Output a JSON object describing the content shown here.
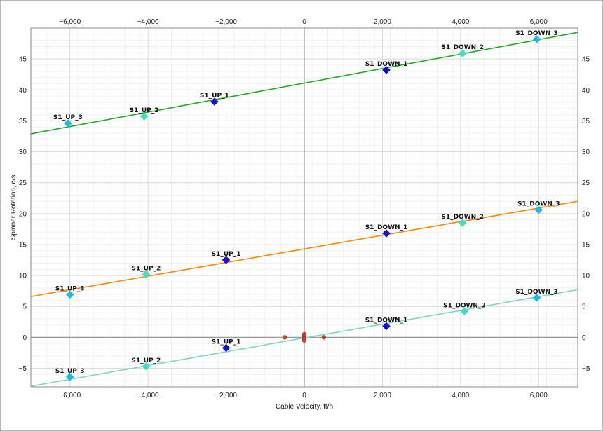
{
  "chart_data": {
    "type": "scatter",
    "title": "",
    "xlabel": "Cable Velocity, ft/h",
    "ylabel": "Spinner Rotation, c/s",
    "xlim": [
      -7000,
      7000
    ],
    "ylim": [
      -8,
      50
    ],
    "x_ticks": [
      -6000,
      -4000,
      -2000,
      0,
      2000,
      4000,
      6000
    ],
    "x_tick_labels": [
      "−6,000",
      "−4,000",
      "−2,000",
      "0",
      "2,000",
      "4,000",
      "6,000"
    ],
    "y_ticks": [
      -5,
      0,
      5,
      10,
      15,
      20,
      25,
      30,
      35,
      40,
      45
    ],
    "y_tick_labels": [
      "−5",
      "0",
      "5",
      "10",
      "15",
      "20",
      "25",
      "30",
      "35",
      "40",
      "45"
    ],
    "grid": true,
    "legend": "none",
    "colors": {
      "zero_line": "#9a9a9a",
      "up_1": "#1010d8",
      "up_2": "#40e0c8",
      "up_3": "#20b8e8",
      "down_1": "#1010d8",
      "down_2": "#40e0c8",
      "down_3": "#20b8e8",
      "zero_flow_points": "#d84030"
    },
    "fit_lines": [
      {
        "color": "#22aa22",
        "x": [
          -7000,
          7000
        ],
        "y": [
          32.9,
          49.3
        ]
      },
      {
        "color": "#ff8800",
        "x": [
          -7000,
          7000
        ],
        "y": [
          6.6,
          22.0
        ]
      },
      {
        "color": "#7fd6c0",
        "x": [
          -7000,
          7000
        ],
        "y": [
          -7.9,
          7.7
        ]
      }
    ],
    "series": [
      {
        "points": [
          {
            "x": -6050,
            "y": 34.6,
            "label": "S1_UP_3",
            "color": "up_3"
          },
          {
            "x": -4100,
            "y": 35.7,
            "label": "S1_UP_2",
            "color": "up_2"
          },
          {
            "x": -2300,
            "y": 38.1,
            "label": "S1_UP_1",
            "color": "up_1"
          },
          {
            "x": 2100,
            "y": 43.2,
            "label": "S1_DOWN_1",
            "color": "down_1"
          },
          {
            "x": 4050,
            "y": 45.9,
            "label": "S1_DOWN_2",
            "color": "down_2"
          },
          {
            "x": 5950,
            "y": 48.2,
            "label": "S1_DOWN_3",
            "color": "down_3"
          }
        ]
      },
      {
        "points": [
          {
            "x": -6000,
            "y": 6.9,
            "label": "S1_UP_3",
            "color": "up_3"
          },
          {
            "x": -4050,
            "y": 10.2,
            "label": "S1_UP_2",
            "color": "up_2"
          },
          {
            "x": -2000,
            "y": 12.5,
            "label": "S1_UP_1",
            "color": "up_1"
          },
          {
            "x": 2100,
            "y": 16.8,
            "label": "S1_DOWN_1",
            "color": "down_1"
          },
          {
            "x": 4050,
            "y": 18.5,
            "label": "S1_DOWN_2",
            "color": "down_2"
          },
          {
            "x": 6000,
            "y": 20.6,
            "label": "S1_DOWN_3",
            "color": "down_3"
          }
        ]
      },
      {
        "points": [
          {
            "x": -6000,
            "y": -6.4,
            "label": "S1_UP_3",
            "color": "up_3"
          },
          {
            "x": -4050,
            "y": -4.7,
            "label": "S1_UP_2",
            "color": "up_2"
          },
          {
            "x": -2000,
            "y": -1.7,
            "label": "S1_UP_1",
            "color": "up_1"
          },
          {
            "x": 2100,
            "y": 1.8,
            "label": "S1_DOWN_1",
            "color": "down_1"
          },
          {
            "x": 4100,
            "y": 4.2,
            "label": "S1_DOWN_2",
            "color": "down_2"
          },
          {
            "x": 5950,
            "y": 6.4,
            "label": "S1_DOWN_3",
            "color": "down_3"
          }
        ]
      }
    ],
    "zero_flow_points": [
      {
        "x": -500,
        "y": 0
      },
      {
        "x": 0,
        "y": 0.5
      },
      {
        "x": 0,
        "y": 0.2
      },
      {
        "x": 0,
        "y": -0.2
      },
      {
        "x": 0,
        "y": -0.5
      },
      {
        "x": 500,
        "y": 0
      }
    ]
  }
}
